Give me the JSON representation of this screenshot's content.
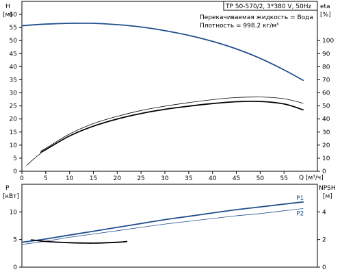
{
  "title": "TP 50-570/2, 3*380 V, 50Hz",
  "info": {
    "liquid": "Перекачиваемая жидкость = Вода",
    "density": "Плотность = 998.2 кг/м³"
  },
  "colors": {
    "blue": "#1f4e8c",
    "black": "#000000",
    "frame": "#000000"
  },
  "chart_data": [
    {
      "type": "line",
      "name": "head-efficiency",
      "ylabel_left": "H",
      "ylabel_left_unit": "[м]",
      "ylabel_right": "eta",
      "ylabel_right_unit": "[%]",
      "xlabel": "Q [м³/ч]",
      "xlim": [
        0,
        62
      ],
      "ylim_left": [
        0,
        65
      ],
      "ylim_right": [
        0,
        130
      ],
      "xticks": [
        0,
        5,
        10,
        15,
        20,
        25,
        30,
        35,
        40,
        45,
        50,
        55
      ],
      "yticks_left": [
        0,
        5,
        10,
        15,
        20,
        25,
        30,
        35,
        40,
        45,
        50,
        55,
        60
      ],
      "yticks_right": [
        0,
        10,
        20,
        30,
        40,
        50,
        60,
        70,
        80,
        90,
        100
      ],
      "grid": false,
      "series": [
        {
          "axis": "left",
          "color": "blue",
          "style": "thick",
          "x": [
            0,
            5,
            10,
            15,
            20,
            25,
            30,
            35,
            40,
            45,
            50,
            55,
            59
          ],
          "y": [
            55.7,
            56.3,
            56.6,
            56.6,
            56.1,
            55.2,
            53.8,
            52.0,
            49.7,
            46.8,
            43.2,
            38.8,
            34.8
          ]
        },
        {
          "axis": "right",
          "color": "black",
          "style": "thin",
          "x": [
            4,
            5,
            10,
            15,
            20,
            25,
            30,
            35,
            40,
            45,
            50,
            55,
            59
          ],
          "y": [
            15.5,
            17.5,
            28.5,
            36.5,
            42.0,
            46.5,
            49.8,
            52.5,
            54.8,
            56.4,
            56.8,
            55.5,
            52.0
          ]
        },
        {
          "axis": "right",
          "color": "black",
          "style": "thick",
          "x": [
            4,
            5,
            10,
            15,
            20,
            25,
            30,
            35,
            40,
            45,
            50,
            55,
            59
          ],
          "y": [
            14.5,
            16.5,
            27.0,
            34.5,
            40.0,
            44.2,
            47.4,
            49.8,
            51.8,
            53.2,
            53.4,
            51.5,
            47.0
          ]
        },
        {
          "axis": "right",
          "color": "black",
          "style": "thin",
          "x": [
            1,
            2,
            3,
            4
          ],
          "y": [
            4.5,
            7.8,
            11.0,
            13.8
          ]
        }
      ]
    },
    {
      "type": "line",
      "name": "power-npsh",
      "ylabel_left": "P",
      "ylabel_left_unit": "[кВт]",
      "ylabel_right": "NPSH",
      "ylabel_right_unit": "[м]",
      "xlim": [
        0,
        62
      ],
      "ylim_left": [
        0,
        15
      ],
      "ylim_right": [
        0,
        6
      ],
      "yticks_left": [
        0,
        5,
        10
      ],
      "yticks_right": [
        0,
        2,
        4
      ],
      "grid": false,
      "series": [
        {
          "name": "P1",
          "axis": "left",
          "color": "blue",
          "style": "thick",
          "x": [
            0,
            5,
            10,
            15,
            20,
            25,
            30,
            35,
            40,
            45,
            50,
            55,
            59
          ],
          "y": [
            4.5,
            5.1,
            5.8,
            6.5,
            7.2,
            7.9,
            8.6,
            9.2,
            9.8,
            10.4,
            10.9,
            11.4,
            11.8
          ]
        },
        {
          "name": "P2",
          "axis": "left",
          "color": "blue",
          "style": "thin",
          "x": [
            0,
            5,
            10,
            15,
            20,
            25,
            30,
            35,
            40,
            45,
            50,
            55,
            59
          ],
          "y": [
            4.1,
            4.7,
            5.4,
            6.0,
            6.6,
            7.2,
            7.8,
            8.3,
            8.8,
            9.3,
            9.7,
            10.2,
            10.6
          ]
        },
        {
          "axis": "right",
          "color": "black",
          "style": "thick",
          "x": [
            2,
            5,
            10,
            15,
            20,
            22
          ],
          "y": [
            1.98,
            1.86,
            1.77,
            1.74,
            1.8,
            1.86
          ]
        }
      ]
    }
  ]
}
